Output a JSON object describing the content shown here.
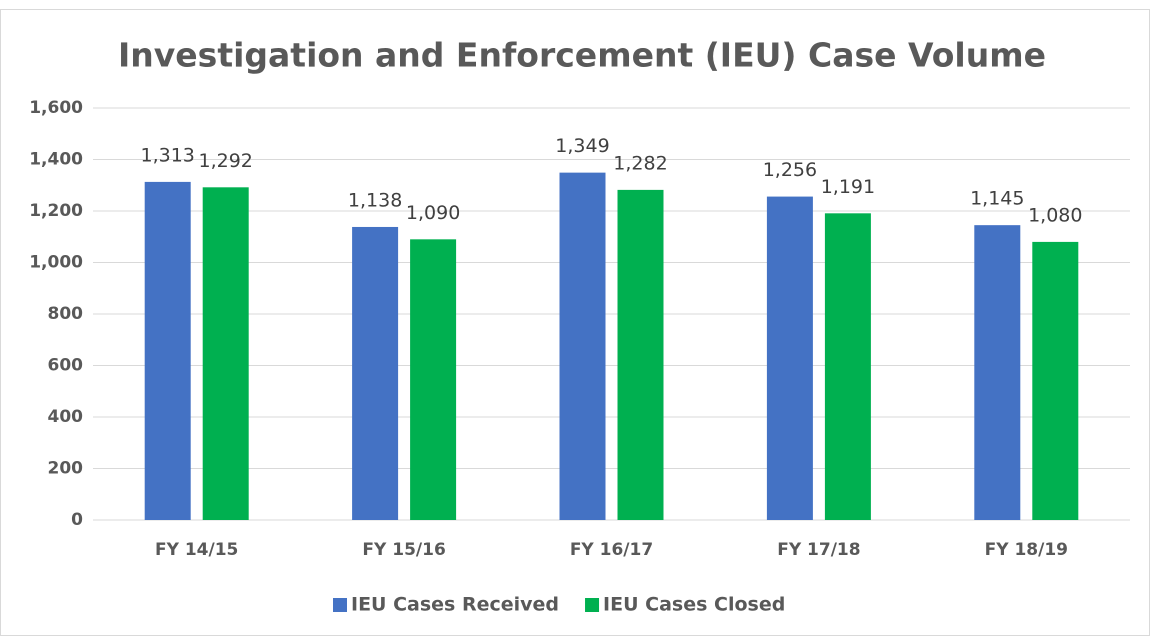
{
  "chart_data": {
    "type": "bar",
    "title": "Investigation and Enforcement (IEU) Case Volume",
    "categories": [
      "FY 14/15",
      "FY 15/16",
      "FY 16/17",
      "FY 17/18",
      "FY 18/19"
    ],
    "series": [
      {
        "name": "IEU Cases Received",
        "color": "#4472c4",
        "values": [
          1313,
          1138,
          1349,
          1256,
          1145
        ],
        "value_labels": [
          "1,313",
          "1,138",
          "1,349",
          "1,256",
          "1,145"
        ]
      },
      {
        "name": "IEU Cases Closed",
        "color": "#00b050",
        "values": [
          1292,
          1090,
          1282,
          1191,
          1080
        ],
        "value_labels": [
          "1,292",
          "1,090",
          "1,282",
          "1,191",
          "1,080"
        ]
      }
    ],
    "ylim": [
      0,
      1600
    ],
    "yticks": [
      0,
      200,
      400,
      600,
      800,
      {
        "value": 1000,
        "label": "1,000"
      },
      {
        "value": 1200,
        "label": "1,200"
      },
      {
        "value": 1400,
        "label": "1,400"
      },
      {
        "value": 1600,
        "label": "1,600"
      }
    ],
    "grid": true,
    "legend": "bottom"
  }
}
